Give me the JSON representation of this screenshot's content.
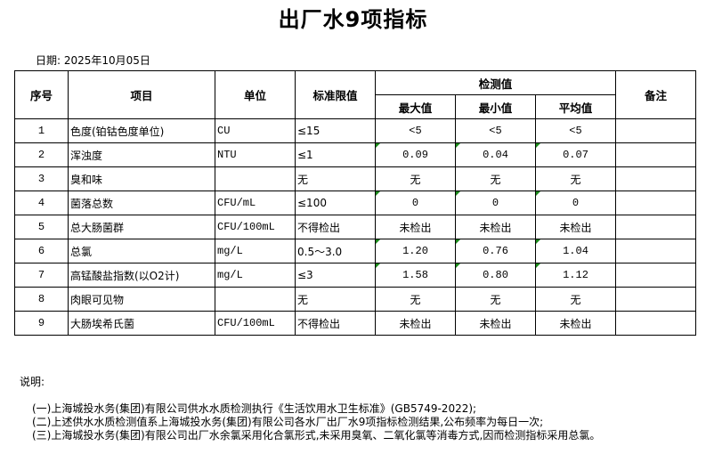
{
  "title": "出厂水9项指标",
  "date": "日期: 2025年10月05日",
  "headers": {
    "no": "序号",
    "item": "项目",
    "unit": "单位",
    "limit": "标准限值",
    "detect": "检测值",
    "max": "最大值",
    "min": "最小值",
    "avg": "平均值",
    "remark": "备注"
  },
  "rows": [
    {
      "no": "1",
      "item": "色度(铂钴色度单位)",
      "unit": "CU",
      "limit": "≤15",
      "max": "<5",
      "min": "<5",
      "avg": "<5"
    },
    {
      "no": "2",
      "item": "浑浊度",
      "unit": "NTU",
      "limit": "≤1",
      "max": "0.09",
      "min": "0.04",
      "avg": "0.07"
    },
    {
      "no": "3",
      "item": "臭和味",
      "unit": "",
      "limit": "无",
      "max": "无",
      "min": "无",
      "avg": "无"
    },
    {
      "no": "4",
      "item": "菌落总数",
      "unit": "CFU/mL",
      "limit": "≤100",
      "max": "0",
      "min": "0",
      "avg": "0"
    },
    {
      "no": "5",
      "item": "总大肠菌群",
      "unit": "CFU/100mL",
      "limit": "不得检出",
      "max": "未检出",
      "min": "未检出",
      "avg": "未检出"
    },
    {
      "no": "6",
      "item": "总氯",
      "unit": "mg/L",
      "limit": "0.5～3.0",
      "max": "1.20",
      "min": "0.76",
      "avg": "1.04"
    },
    {
      "no": "7",
      "item": "高锰酸盐指数(以O2计)",
      "unit": "mg/L",
      "limit": "≤3",
      "max": "1.58",
      "min": "0.80",
      "avg": "1.12"
    },
    {
      "no": "8",
      "item": "肉眼可见物",
      "unit": "",
      "limit": "无",
      "max": "无",
      "min": "无",
      "avg": "无"
    },
    {
      "no": "9",
      "item": "大肠埃希氏菌",
      "unit": "CFU/100mL",
      "limit": "不得检出",
      "max": "未检出",
      "min": "未检出",
      "avg": "未检出"
    }
  ],
  "notes": {
    "label": "说明:",
    "items": [
      "(一)上海城投水务(集团)有限公司供水水质检测执行《生活饮用水卫生标准》(GB5749-2022);",
      "(二)上述供水水质检测值系上海城投水务(集团)有限公司各水厂出厂水9项指标检测结果,公布频率为每日一次;",
      "(三)上海城投水务(集团)有限公司出厂水余氯采用化合氯形式,未采用臭氧、二氧化氯等消毒方式,因而检测指标采用总氯。"
    ]
  }
}
